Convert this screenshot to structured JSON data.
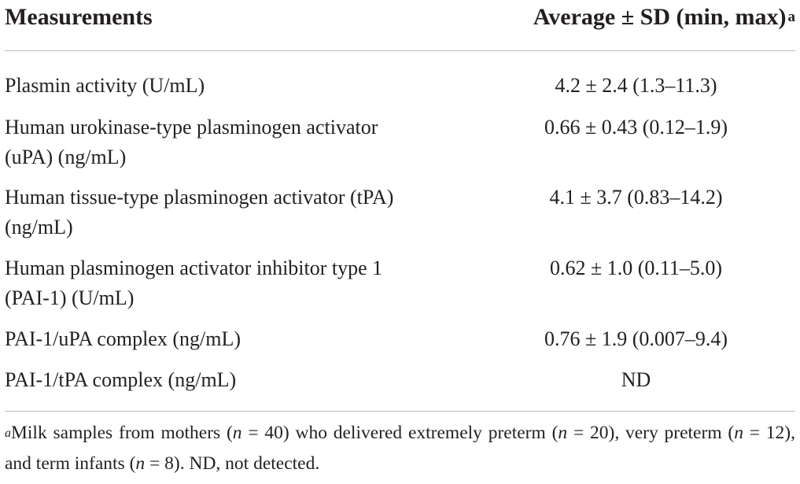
{
  "table": {
    "header": {
      "measurement": "Measurements",
      "value": "Average ± SD (min, max)",
      "value_note": "a"
    },
    "rows": [
      {
        "measurement": "Plasmin activity (U/mL)",
        "value": "4.2 ± 2.4 (1.3–11.3)"
      },
      {
        "measurement": "Human urokinase-type plasminogen activator (uPA) (ng/mL)",
        "value": "0.66 ± 0.43 (0.12–1.9)"
      },
      {
        "measurement": "Human tissue-type plasminogen activator (tPA) (ng/mL)",
        "value": "4.1 ± 3.7 (0.83–14.2)"
      },
      {
        "measurement": "Human plasminogen activator inhibitor type 1 (PAI-1) (U/mL)",
        "value": "0.62 ± 1.0 (0.11–5.0)"
      },
      {
        "measurement": "PAI-1/uPA complex (ng/mL)",
        "value": "0.76 ± 1.9 (0.007–9.4)"
      },
      {
        "measurement": "PAI-1/tPA complex (ng/mL)",
        "value": "ND"
      }
    ]
  },
  "footnote": {
    "marker": "a",
    "text_1": "Milk samples from mothers (",
    "n_label": "n",
    "text_2": " = 40) who delivered extremely preterm (",
    "text_3": " = 20), very preterm (",
    "text_4": " = 12), and term infants (",
    "text_5": " = 8). ND, not detected."
  }
}
